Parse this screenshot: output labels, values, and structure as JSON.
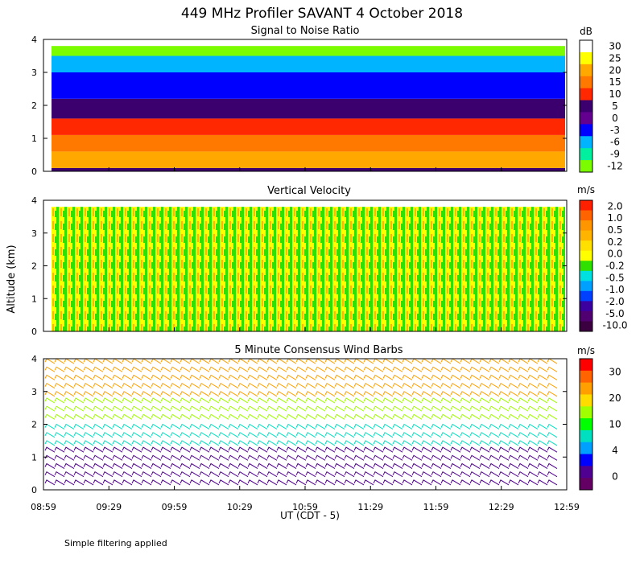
{
  "figure": {
    "title": "449 MHz Profiler SAVANT  4 October 2018",
    "y_axis_label": "Altitude (km)",
    "x_axis_label": "UT  (CDT - 5)",
    "footnote": "Simple filtering applied"
  },
  "chart_data": [
    {
      "type": "heatmap",
      "title": "Signal to Noise Ratio",
      "units": "dB",
      "x_ticks": [
        "08:59",
        "09:29",
        "09:59",
        "10:29",
        "10:59",
        "11:29",
        "11:59",
        "12:29",
        "12:59"
      ],
      "y_ticks": [
        "0",
        "1",
        "2",
        "3",
        "4"
      ],
      "ylim": [
        0,
        4
      ],
      "colorbar": {
        "labels": [
          "30",
          "25",
          "20",
          "15",
          "10",
          "5",
          "0",
          "-3",
          "-6",
          "-9",
          "-12"
        ],
        "colors": [
          "#ffffff",
          "#ffff00",
          "#ffa800",
          "#ff7800",
          "#ff2800",
          "#3c006e",
          "#640090",
          "#0000ff",
          "#00b4ff",
          "#00f0a0",
          "#7cfc00"
        ]
      },
      "layers": [
        {
          "from_km": 0.0,
          "to_km": 0.1,
          "dB": 5
        },
        {
          "from_km": 0.1,
          "to_km": 0.6,
          "dB": 20
        },
        {
          "from_km": 0.6,
          "to_km": 1.1,
          "dB": 15
        },
        {
          "from_km": 1.1,
          "to_km": 1.6,
          "dB": 10
        },
        {
          "from_km": 1.6,
          "to_km": 2.2,
          "dB": 5
        },
        {
          "from_km": 2.2,
          "to_km": 3.0,
          "dB": -3
        },
        {
          "from_km": 3.0,
          "to_km": 3.5,
          "dB": -6
        },
        {
          "from_km": 3.5,
          "to_km": 3.8,
          "dB": -12
        }
      ]
    },
    {
      "type": "heatmap",
      "title": "Vertical Velocity",
      "units": "m/s",
      "x_ticks": [
        "08:59",
        "09:29",
        "09:59",
        "10:29",
        "10:59",
        "11:29",
        "11:59",
        "12:29",
        "12:59"
      ],
      "y_ticks": [
        "0",
        "1",
        "2",
        "3",
        "4"
      ],
      "ylim": [
        0,
        4
      ],
      "colorbar": {
        "labels": [
          "2.0",
          "1.0",
          "0.5",
          "0.2",
          "0.0",
          "-0.2",
          "-0.5",
          "-1.0",
          "-2.0",
          "-5.0",
          "-10.0"
        ],
        "colors": [
          "#ff2000",
          "#ff6400",
          "#ff9600",
          "#ffb400",
          "#ffe000",
          "#ffff00",
          "#30e000",
          "#00e0e0",
          "#00a0ff",
          "#0040ff",
          "#3c00a0",
          "#500070",
          "#3a0040"
        ]
      },
      "dominant_values": [
        0.0,
        -0.2,
        0.2
      ],
      "top_km": 3.8
    },
    {
      "type": "wind_barbs",
      "title": "5 Minute Consensus Wind Barbs",
      "units": "m/s",
      "x_ticks": [
        "08:59",
        "09:29",
        "09:59",
        "10:29",
        "10:59",
        "11:29",
        "11:59",
        "12:29",
        "12:59"
      ],
      "y_ticks": [
        "0",
        "1",
        "2",
        "3",
        "4"
      ],
      "ylim": [
        0,
        4
      ],
      "colorbar": {
        "labels": [
          "30",
          "20",
          "10",
          "4",
          "0"
        ],
        "colors": [
          "#ff0000",
          "#ff6400",
          "#ffa000",
          "#ffdc00",
          "#a0ff00",
          "#00ff00",
          "#00e0c0",
          "#00a0ff",
          "#0000ff",
          "#500090",
          "#640064"
        ]
      },
      "speed_layers": [
        {
          "from_km": 2.7,
          "to_km": 3.9,
          "speed_ms": 20
        },
        {
          "from_km": 2.0,
          "to_km": 2.7,
          "speed_ms": 14
        },
        {
          "from_km": 1.2,
          "to_km": 2.0,
          "speed_ms": 8
        },
        {
          "from_km": 0.0,
          "to_km": 1.2,
          "speed_ms": 2
        }
      ]
    }
  ]
}
